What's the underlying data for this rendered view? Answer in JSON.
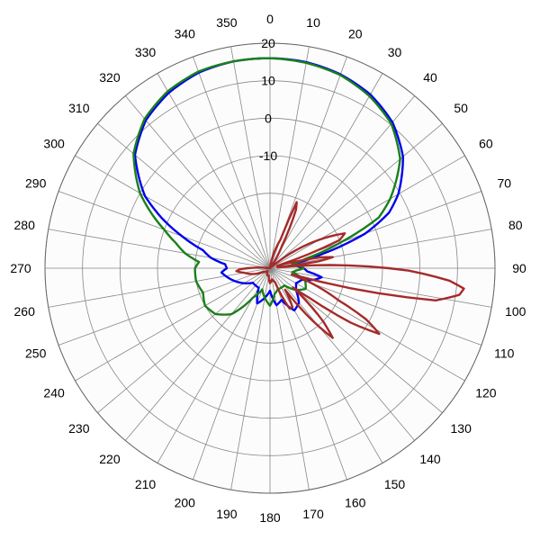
{
  "chart_data": {
    "type": "polar",
    "title": "",
    "angle_unit": "degrees",
    "angle_zero": "top",
    "angle_direction": "clockwise",
    "angle_ticks": [
      0,
      10,
      20,
      30,
      40,
      50,
      60,
      70,
      80,
      90,
      100,
      110,
      120,
      130,
      140,
      150,
      160,
      170,
      180,
      190,
      200,
      210,
      220,
      230,
      240,
      250,
      260,
      270,
      280,
      290,
      300,
      310,
      320,
      330,
      340,
      350
    ],
    "radial_ticks": [
      -10,
      0,
      10,
      20
    ],
    "rlim": [
      -40,
      20
    ],
    "grid": true,
    "colors": {
      "background": "#ffffff",
      "plot_fill": "#fcfcfc",
      "grid": "#888888",
      "outer_ring": "#666666"
    },
    "series": [
      {
        "color": "#0000ee",
        "points": [
          [
            0,
            16
          ],
          [
            10,
            15.8
          ],
          [
            20,
            15
          ],
          [
            30,
            13.5
          ],
          [
            40,
            10.8
          ],
          [
            50,
            6.3
          ],
          [
            60,
            -0.5
          ],
          [
            65,
            -5
          ],
          [
            70,
            -13
          ],
          [
            75,
            -26
          ],
          [
            80,
            -34
          ],
          [
            85,
            -33
          ],
          [
            90,
            -31
          ],
          [
            95,
            -30
          ],
          [
            100,
            -26
          ],
          [
            105,
            -28
          ],
          [
            110,
            -31
          ],
          [
            120,
            -32
          ],
          [
            130,
            -31
          ],
          [
            140,
            -28
          ],
          [
            150,
            -27
          ],
          [
            160,
            -31
          ],
          [
            170,
            -30
          ],
          [
            180,
            -34
          ],
          [
            190,
            -32
          ],
          [
            200,
            -30
          ],
          [
            210,
            -34
          ],
          [
            220,
            -34
          ],
          [
            230,
            -34
          ],
          [
            240,
            -32
          ],
          [
            250,
            -30
          ],
          [
            260,
            -28
          ],
          [
            265,
            -27
          ],
          [
            270,
            -28.5
          ],
          [
            275,
            -28
          ],
          [
            280,
            -24
          ],
          [
            285,
            -21.5
          ],
          [
            290,
            -15
          ],
          [
            295,
            -8
          ],
          [
            300,
            -1.5
          ],
          [
            310,
            7
          ],
          [
            320,
            11.5
          ],
          [
            330,
            14
          ],
          [
            340,
            15.5
          ],
          [
            350,
            16
          ]
        ]
      },
      {
        "color": "#1a7f1a",
        "points": [
          [
            0,
            16
          ],
          [
            10,
            15.6
          ],
          [
            20,
            14.8
          ],
          [
            30,
            13
          ],
          [
            40,
            10.3
          ],
          [
            50,
            5.3
          ],
          [
            60,
            -3
          ],
          [
            65,
            -8
          ],
          [
            70,
            -20
          ],
          [
            75,
            -30
          ],
          [
            80,
            -34
          ],
          [
            85,
            -32
          ],
          [
            90,
            -31
          ],
          [
            95,
            -33
          ],
          [
            100,
            -34
          ],
          [
            110,
            -30
          ],
          [
            120,
            -29
          ],
          [
            130,
            -31
          ],
          [
            140,
            -34
          ],
          [
            150,
            -34
          ],
          [
            160,
            -34
          ],
          [
            170,
            -33
          ],
          [
            180,
            -30
          ],
          [
            190,
            -32
          ],
          [
            200,
            -34
          ],
          [
            210,
            -31
          ],
          [
            220,
            -24
          ],
          [
            230,
            -21
          ],
          [
            240,
            -20
          ],
          [
            250,
            -21
          ],
          [
            260,
            -20
          ],
          [
            270,
            -20
          ],
          [
            275,
            -21
          ],
          [
            280,
            -17
          ],
          [
            285,
            -14
          ],
          [
            290,
            -10
          ],
          [
            295,
            -5
          ],
          [
            300,
            0
          ],
          [
            310,
            7.5
          ],
          [
            320,
            12
          ],
          [
            330,
            14.5
          ],
          [
            340,
            15.8
          ],
          [
            350,
            16
          ]
        ]
      },
      {
        "color": "#a52a2a",
        "points": [
          [
            0,
            -40
          ],
          [
            10,
            -39
          ],
          [
            20,
            -32
          ],
          [
            22,
            -21
          ],
          [
            24,
            -23
          ],
          [
            28,
            -33
          ],
          [
            35,
            -40
          ],
          [
            50,
            -39
          ],
          [
            62,
            -22
          ],
          [
            65,
            -18
          ],
          [
            68,
            -20
          ],
          [
            72,
            -38
          ],
          [
            75,
            -34
          ],
          [
            78,
            -26
          ],
          [
            80,
            -23
          ],
          [
            82,
            -27
          ],
          [
            84,
            -38
          ],
          [
            85,
            -34
          ],
          [
            88,
            -19
          ],
          [
            91,
            -3
          ],
          [
            94,
            8
          ],
          [
            96,
            12
          ],
          [
            98,
            11
          ],
          [
            101,
            5
          ],
          [
            104,
            -18
          ],
          [
            106,
            -34
          ],
          [
            110,
            -28
          ],
          [
            115,
            -20
          ],
          [
            118,
            -11
          ],
          [
            121,
            -6
          ],
          [
            124,
            -14
          ],
          [
            127,
            -27
          ],
          [
            130,
            -32
          ],
          [
            135,
            -20
          ],
          [
            138,
            -15
          ],
          [
            141,
            -22
          ],
          [
            145,
            -33
          ],
          [
            150,
            -28
          ],
          [
            154,
            -28
          ],
          [
            160,
            -36
          ],
          [
            170,
            -37
          ],
          [
            180,
            -36
          ],
          [
            190,
            -38
          ],
          [
            200,
            -38
          ],
          [
            220,
            -39
          ],
          [
            240,
            -38
          ],
          [
            260,
            -33
          ],
          [
            265,
            -31
          ],
          [
            268,
            -32
          ],
          [
            270,
            -34
          ],
          [
            275,
            -39
          ],
          [
            280,
            -40
          ],
          [
            300,
            -40
          ],
          [
            330,
            -40
          ],
          [
            355,
            -40
          ]
        ]
      }
    ]
  }
}
